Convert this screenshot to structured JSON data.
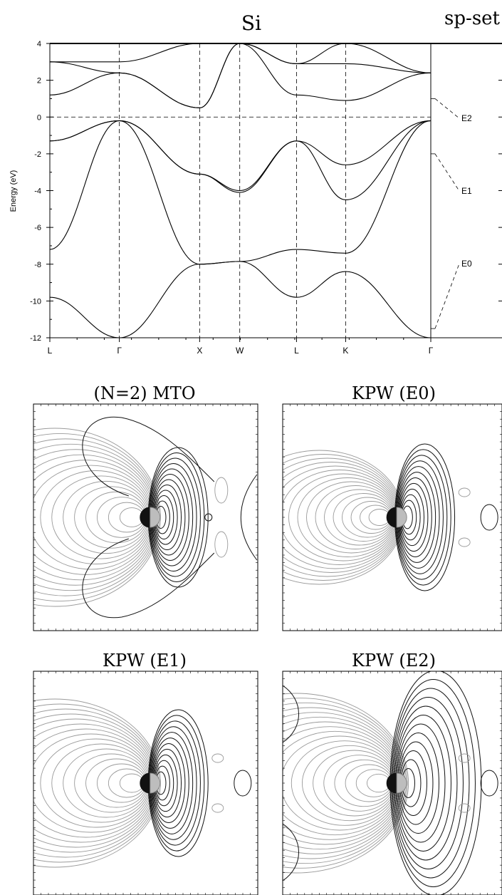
{
  "figure": {
    "title": "Si",
    "corner_label": "sp-set"
  },
  "chart_data": {
    "type": "line",
    "title": "Si",
    "ylabel": "Energy (eV)",
    "xlabel": "",
    "ylim": [
      -12,
      4
    ],
    "yticks": [
      4,
      2,
      0,
      -2,
      -4,
      -6,
      -8,
      -10,
      -12
    ],
    "kpoints": [
      {
        "label": "L",
        "k": 0.0
      },
      {
        "label": "Γ",
        "k": 0.866
      },
      {
        "label": "X",
        "k": 1.866
      },
      {
        "label": "W",
        "k": 2.366
      },
      {
        "label": "L",
        "k": 3.073
      },
      {
        "label": "K",
        "k": 3.685
      },
      {
        "label": "Γ",
        "k": 4.746
      }
    ],
    "fermi_level": 0,
    "series": [
      {
        "x": [
          0,
          0.866,
          1.866,
          2.366,
          3.073,
          3.685,
          4.746
        ],
        "y": [
          -9.8,
          -12.0,
          -8.0,
          -7.85,
          -9.8,
          -8.4,
          -12.0
        ]
      },
      {
        "x": [
          0,
          0.866,
          1.866,
          2.366,
          3.073,
          3.685,
          4.746
        ],
        "y": [
          -7.2,
          -0.2,
          -8.0,
          -7.85,
          -7.2,
          -7.4,
          -0.2
        ]
      },
      {
        "x": [
          0,
          0.866,
          1.866,
          2.366,
          3.073,
          3.685,
          4.746
        ],
        "y": [
          -1.3,
          -0.2,
          -3.1,
          -4.1,
          -1.3,
          -2.6,
          -0.2
        ]
      },
      {
        "x": [
          0,
          0.866,
          1.866,
          2.366,
          3.073,
          3.685,
          4.746
        ],
        "y": [
          -1.3,
          -0.2,
          -3.1,
          -4.0,
          -1.3,
          -4.5,
          -0.2
        ]
      },
      {
        "x": [
          0,
          0.866,
          1.866,
          2.366,
          3.073,
          3.685,
          4.746
        ],
        "y": [
          1.2,
          2.4,
          0.5,
          4.0,
          1.2,
          0.9,
          2.4
        ]
      },
      {
        "x": [
          0,
          0.866,
          1.866,
          2.366,
          3.073,
          3.685,
          4.746
        ],
        "y": [
          3.0,
          2.4,
          0.5,
          4.0,
          2.9,
          2.9,
          2.4
        ]
      },
      {
        "x": [
          0,
          0.866,
          1.866,
          2.366,
          3.073,
          3.685,
          4.746
        ],
        "y": [
          3.0,
          3.0,
          4.0,
          4.0,
          2.9,
          4.0,
          2.4
        ]
      }
    ],
    "energy_markers": [
      {
        "label": "E2",
        "energy": 1.0
      },
      {
        "label": "E1",
        "energy": -2.0
      },
      {
        "label": "E0",
        "energy": -11.5
      }
    ]
  },
  "panels": [
    {
      "title": "(N=2) MTO",
      "variant": "mto"
    },
    {
      "title": "KPW (E0)",
      "variant": "e0"
    },
    {
      "title": "KPW (E1)",
      "variant": "e1"
    },
    {
      "title": "KPW (E2)",
      "variant": "e2"
    }
  ],
  "colors": {
    "positive_contour": "#111111",
    "negative_contour": "#9a9a9a",
    "axis": "#000000"
  }
}
